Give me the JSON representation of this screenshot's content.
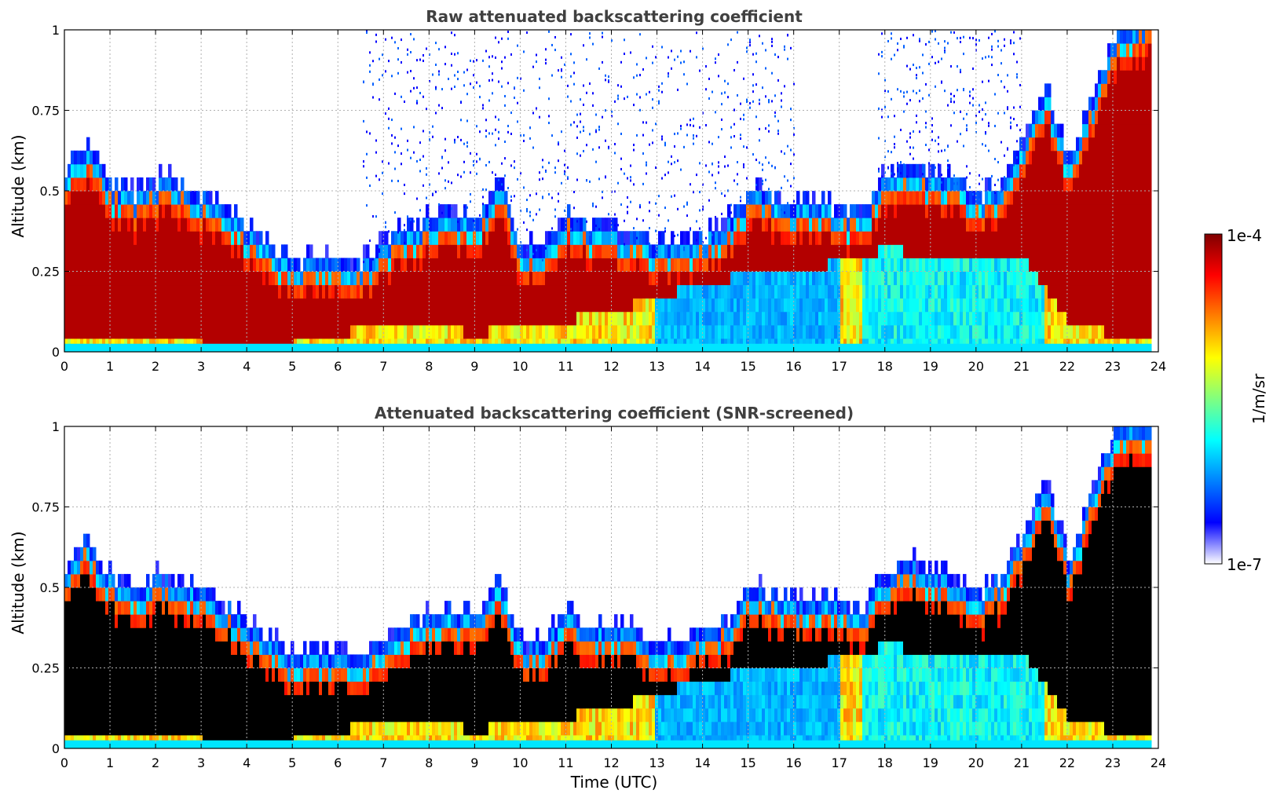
{
  "chart_data": [
    {
      "type": "heatmap",
      "title": "Raw attenuated backscattering coefficient",
      "xlabel": "",
      "ylabel": "Altitude (km)",
      "xlim": [
        0,
        24
      ],
      "ylim": [
        0,
        1
      ],
      "x_ticks": [
        "0",
        "1",
        "2",
        "3",
        "4",
        "5",
        "6",
        "7",
        "8",
        "9",
        "10",
        "11",
        "12",
        "13",
        "14",
        "15",
        "16",
        "17",
        "18",
        "19",
        "20",
        "21",
        "22",
        "23",
        "24"
      ],
      "y_ticks": [
        "0",
        "0.25",
        "0.5",
        "0.75",
        "1"
      ],
      "grid": true,
      "screened": false,
      "layer_top_km": [
        [
          0,
          0.55
        ],
        [
          0.5,
          0.62
        ],
        [
          1,
          0.5
        ],
        [
          1.5,
          0.45
        ],
        [
          2,
          0.5
        ],
        [
          2.5,
          0.5
        ],
        [
          3,
          0.45
        ],
        [
          3.5,
          0.42
        ],
        [
          4,
          0.35
        ],
        [
          4.5,
          0.3
        ],
        [
          5,
          0.25
        ],
        [
          5.5,
          0.27
        ],
        [
          6,
          0.26
        ],
        [
          6.5,
          0.24
        ],
        [
          7,
          0.32
        ],
        [
          7.5,
          0.36
        ],
        [
          8,
          0.38
        ],
        [
          8.5,
          0.4
        ],
        [
          9,
          0.38
        ],
        [
          9.5,
          0.5
        ],
        [
          10,
          0.3
        ],
        [
          10.5,
          0.3
        ],
        [
          11,
          0.4
        ],
        [
          11.5,
          0.36
        ],
        [
          12,
          0.35
        ],
        [
          12.5,
          0.33
        ],
        [
          13,
          0.3
        ],
        [
          13.5,
          0.31
        ],
        [
          14,
          0.33
        ],
        [
          14.5,
          0.37
        ],
        [
          15,
          0.47
        ],
        [
          15.5,
          0.45
        ],
        [
          16,
          0.43
        ],
        [
          16.5,
          0.44
        ],
        [
          17,
          0.42
        ],
        [
          17.5,
          0.4
        ],
        [
          18,
          0.52
        ],
        [
          18.5,
          0.55
        ],
        [
          19,
          0.52
        ],
        [
          19.5,
          0.5
        ],
        [
          20,
          0.45
        ],
        [
          20.5,
          0.5
        ],
        [
          21,
          0.62
        ],
        [
          21.5,
          0.8
        ],
        [
          22,
          0.55
        ],
        [
          22.5,
          0.75
        ],
        [
          23,
          0.95
        ],
        [
          23.8,
          1.0
        ]
      ],
      "layer_base_km": [
        [
          0,
          0.05
        ],
        [
          1,
          0.05
        ],
        [
          2,
          0.05
        ],
        [
          3,
          0.02
        ],
        [
          4,
          0.02
        ],
        [
          5,
          0.02
        ],
        [
          6,
          0.05
        ],
        [
          7,
          0.1
        ],
        [
          8,
          0.1
        ],
        [
          9,
          0.05
        ],
        [
          10,
          0.1
        ],
        [
          11,
          0.1
        ],
        [
          12,
          0.12
        ],
        [
          13,
          0.18
        ],
        [
          14,
          0.2
        ],
        [
          15,
          0.25
        ],
        [
          16,
          0.25
        ],
        [
          17,
          0.28
        ],
        [
          18,
          0.32
        ],
        [
          19,
          0.3
        ],
        [
          20,
          0.28
        ],
        [
          21,
          0.3
        ],
        [
          22,
          0.1
        ],
        [
          23,
          0.05
        ],
        [
          23.8,
          0.05
        ]
      ]
    },
    {
      "type": "heatmap",
      "title": "Attenuated backscattering coefficient (SNR-screened)",
      "xlabel": "Time (UTC)",
      "ylabel": "Altitude (km)",
      "xlim": [
        0,
        24
      ],
      "ylim": [
        0,
        1
      ],
      "x_ticks": [
        "0",
        "1",
        "2",
        "3",
        "4",
        "5",
        "6",
        "7",
        "8",
        "9",
        "10",
        "11",
        "12",
        "13",
        "14",
        "15",
        "16",
        "17",
        "18",
        "19",
        "20",
        "21",
        "22",
        "23",
        "24"
      ],
      "y_ticks": [
        "0",
        "0.25",
        "0.5",
        "0.75",
        "1"
      ],
      "grid": true,
      "screened": true
    }
  ],
  "colorbar": {
    "label": "1/m/sr",
    "max_label": "1e-4",
    "min_label": "1e-7",
    "colormap": [
      "#ffffff",
      "#0000ff",
      "#0080ff",
      "#00ffff",
      "#80ff80",
      "#ffff00",
      "#ff8000",
      "#ff0000",
      "#800000"
    ]
  }
}
